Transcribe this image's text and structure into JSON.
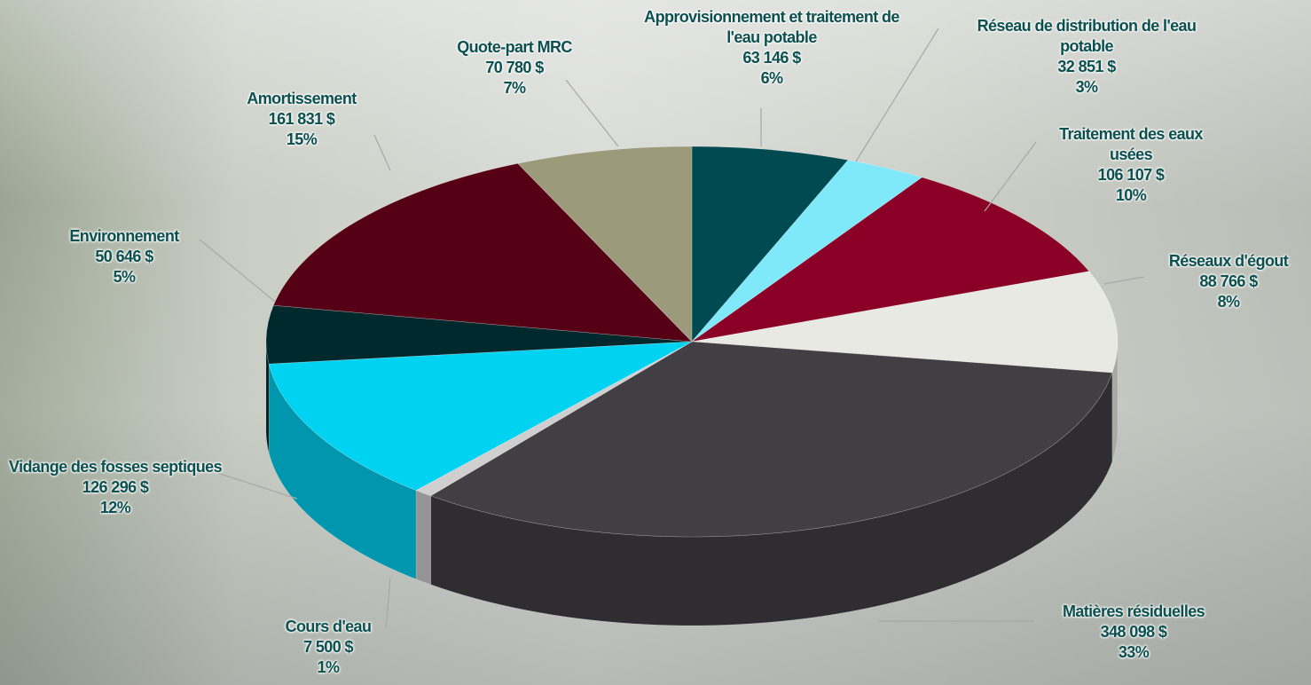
{
  "chart_data": {
    "type": "pie",
    "categories": [
      "Approvisionnement et traitement de l'eau potable",
      "Réseau de distribution de l'eau potable",
      "Traitement des eaux usées",
      "Réseaux d'égout",
      "Matières résiduelles",
      "Cours d'eau",
      "Vidange des fosses septiques",
      "Environnement",
      "Amortissement",
      "Quote-part MRC"
    ],
    "values": [
      63146,
      32851,
      106107,
      88766,
      348098,
      7500,
      126296,
      50646,
      161831,
      70780
    ],
    "value_labels": [
      "63 146  $",
      "32 851  $",
      "106 107  $",
      "88 766  $",
      "348 098  $",
      "7 500  $",
      "126 296  $",
      "50 646  $",
      "161 831  $",
      "70 780  $"
    ],
    "percents": [
      6,
      3,
      10,
      8,
      33,
      1,
      12,
      5,
      15,
      7
    ],
    "percent_labels": [
      "6%",
      "3%",
      "10%",
      "8%",
      "33%",
      "1%",
      "12%",
      "5%",
      "15%",
      "7%"
    ],
    "colors": [
      "#004a52",
      "#7fe9fa",
      "#8a0026",
      "#e9e9e4",
      "#413f44",
      "#cfcfcf",
      "#00d2f2",
      "#00292d",
      "#560015",
      "#9b9b7b"
    ]
  }
}
